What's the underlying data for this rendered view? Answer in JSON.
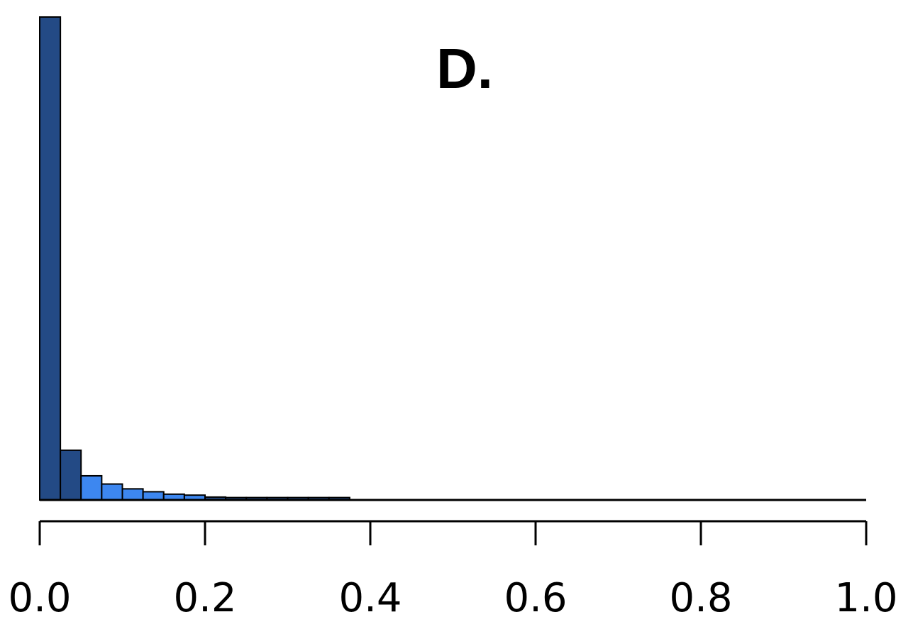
{
  "chart_data": {
    "type": "bar",
    "title": "D.",
    "xlabel": "",
    "ylabel": "",
    "xlim": [
      0.0,
      1.0
    ],
    "ylim": [
      0,
      1.0
    ],
    "bin_width": 0.025,
    "bins": [
      {
        "x0": 0.0,
        "x1": 0.025,
        "value": 1.0,
        "group": "dark"
      },
      {
        "x0": 0.025,
        "x1": 0.05,
        "value": 0.103,
        "group": "dark"
      },
      {
        "x0": 0.05,
        "x1": 0.075,
        "value": 0.05,
        "group": "light"
      },
      {
        "x0": 0.075,
        "x1": 0.1,
        "value": 0.033,
        "group": "light"
      },
      {
        "x0": 0.1,
        "x1": 0.125,
        "value": 0.023,
        "group": "light"
      },
      {
        "x0": 0.125,
        "x1": 0.15,
        "value": 0.017,
        "group": "light"
      },
      {
        "x0": 0.15,
        "x1": 0.175,
        "value": 0.012,
        "group": "light"
      },
      {
        "x0": 0.175,
        "x1": 0.2,
        "value": 0.01,
        "group": "light"
      },
      {
        "x0": 0.2,
        "x1": 0.225,
        "value": 0.006,
        "group": "dark"
      },
      {
        "x0": 0.225,
        "x1": 0.25,
        "value": 0.005,
        "group": "dark"
      },
      {
        "x0": 0.25,
        "x1": 0.275,
        "value": 0.005,
        "group": "dark"
      },
      {
        "x0": 0.275,
        "x1": 0.3,
        "value": 0.005,
        "group": "dark"
      },
      {
        "x0": 0.3,
        "x1": 0.325,
        "value": 0.005,
        "group": "dark"
      },
      {
        "x0": 0.325,
        "x1": 0.35,
        "value": 0.005,
        "group": "dark"
      },
      {
        "x0": 0.35,
        "x1": 0.375,
        "value": 0.005,
        "group": "dark"
      }
    ],
    "x_ticks": [
      {
        "value": 0.0,
        "label": "0.0"
      },
      {
        "value": 0.2,
        "label": "0.2"
      },
      {
        "value": 0.4,
        "label": "0.4"
      },
      {
        "value": 0.6,
        "label": "0.6"
      },
      {
        "value": 0.8,
        "label": "0.8"
      },
      {
        "value": 1.0,
        "label": "1.0"
      }
    ],
    "grid": false,
    "legend": "none",
    "colors": {
      "dark": "#234a85",
      "light": "#3d87f0",
      "outline": "#000000",
      "axis": "#000000"
    }
  }
}
